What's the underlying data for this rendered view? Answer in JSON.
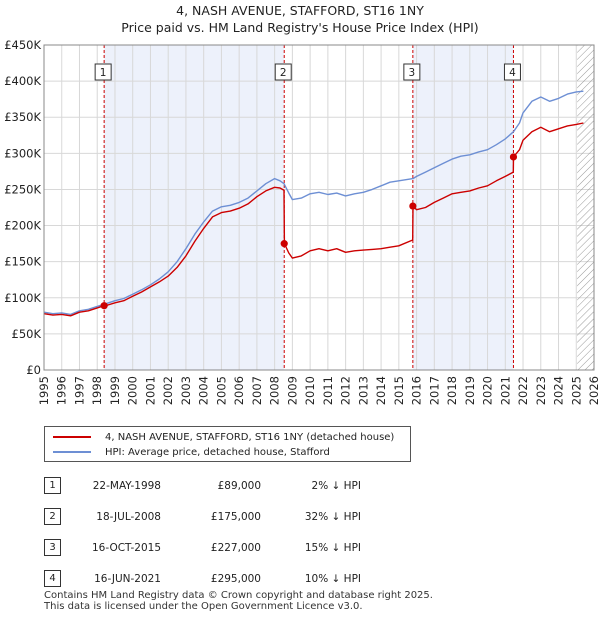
{
  "title_line1": "4, NASH AVENUE, STAFFORD, ST16 1NY",
  "title_line2": "Price paid vs. HM Land Registry's House Price Index (HPI)",
  "chart_data": {
    "type": "line",
    "x_range": [
      1995,
      2026
    ],
    "ylim": [
      0,
      450000
    ],
    "y_ticks": [
      0,
      50000,
      100000,
      150000,
      200000,
      250000,
      300000,
      350000,
      400000,
      450000
    ],
    "y_tick_labels": [
      "£0",
      "£50K",
      "£100K",
      "£150K",
      "£200K",
      "£250K",
      "£300K",
      "£350K",
      "£400K",
      "£450K"
    ],
    "x_ticks": [
      1995,
      1996,
      1997,
      1998,
      1999,
      2000,
      2001,
      2002,
      2003,
      2004,
      2005,
      2006,
      2007,
      2008,
      2009,
      2010,
      2011,
      2012,
      2013,
      2014,
      2015,
      2016,
      2017,
      2018,
      2019,
      2020,
      2021,
      2022,
      2023,
      2024,
      2025,
      2026
    ],
    "grid": true,
    "future_hatch_from": 2025.05,
    "series": [
      {
        "name": "4, NASH AVENUE, STAFFORD, ST16 1NY (detached house)",
        "color": "#cc0000",
        "points": [
          [
            1995.0,
            78000
          ],
          [
            1995.5,
            76000
          ],
          [
            1996.0,
            77000
          ],
          [
            1996.5,
            75000
          ],
          [
            1997.0,
            80000
          ],
          [
            1997.5,
            82000
          ],
          [
            1998.0,
            86000
          ],
          [
            1998.39,
            89000
          ],
          [
            1998.6,
            90000
          ],
          [
            1999.0,
            93000
          ],
          [
            1999.5,
            96000
          ],
          [
            2000.0,
            102000
          ],
          [
            2000.5,
            108000
          ],
          [
            2001.0,
            115000
          ],
          [
            2001.5,
            122000
          ],
          [
            2002.0,
            130000
          ],
          [
            2002.5,
            142000
          ],
          [
            2003.0,
            158000
          ],
          [
            2003.5,
            178000
          ],
          [
            2004.0,
            196000
          ],
          [
            2004.5,
            212000
          ],
          [
            2005.0,
            218000
          ],
          [
            2005.5,
            220000
          ],
          [
            2006.0,
            224000
          ],
          [
            2006.5,
            230000
          ],
          [
            2007.0,
            240000
          ],
          [
            2007.5,
            248000
          ],
          [
            2008.0,
            253000
          ],
          [
            2008.3,
            252000
          ],
          [
            2008.53,
            249000
          ],
          [
            2008.55,
            175000
          ],
          [
            2008.8,
            162000
          ],
          [
            2009.0,
            155000
          ],
          [
            2009.5,
            158000
          ],
          [
            2010.0,
            165000
          ],
          [
            2010.5,
            168000
          ],
          [
            2011.0,
            165000
          ],
          [
            2011.5,
            168000
          ],
          [
            2012.0,
            163000
          ],
          [
            2012.5,
            165000
          ],
          [
            2013.0,
            166000
          ],
          [
            2013.5,
            167000
          ],
          [
            2014.0,
            168000
          ],
          [
            2014.5,
            170000
          ],
          [
            2015.0,
            172000
          ],
          [
            2015.78,
            180000
          ],
          [
            2015.8,
            227000
          ],
          [
            2016.0,
            222000
          ],
          [
            2016.5,
            225000
          ],
          [
            2017.0,
            232000
          ],
          [
            2017.5,
            238000
          ],
          [
            2018.0,
            244000
          ],
          [
            2018.5,
            246000
          ],
          [
            2019.0,
            248000
          ],
          [
            2019.5,
            252000
          ],
          [
            2020.0,
            255000
          ],
          [
            2020.5,
            262000
          ],
          [
            2021.0,
            268000
          ],
          [
            2021.45,
            274000
          ],
          [
            2021.46,
            295000
          ],
          [
            2021.8,
            305000
          ],
          [
            2022.0,
            318000
          ],
          [
            2022.5,
            330000
          ],
          [
            2023.0,
            336000
          ],
          [
            2023.5,
            330000
          ],
          [
            2024.0,
            334000
          ],
          [
            2024.5,
            338000
          ],
          [
            2025.0,
            340000
          ],
          [
            2025.4,
            342000
          ]
        ]
      },
      {
        "name": "HPI: Average price, detached house, Stafford",
        "color": "#6d8fd4",
        "points": [
          [
            1995.0,
            80000
          ],
          [
            1995.5,
            78000
          ],
          [
            1996.0,
            79000
          ],
          [
            1996.5,
            77000
          ],
          [
            1997.0,
            82000
          ],
          [
            1997.5,
            84000
          ],
          [
            1998.0,
            88000
          ],
          [
            1998.39,
            91000
          ],
          [
            1999.0,
            96000
          ],
          [
            1999.5,
            99000
          ],
          [
            2000.0,
            105000
          ],
          [
            2000.5,
            111000
          ],
          [
            2001.0,
            118000
          ],
          [
            2001.5,
            126000
          ],
          [
            2002.0,
            136000
          ],
          [
            2002.5,
            150000
          ],
          [
            2003.0,
            168000
          ],
          [
            2003.5,
            188000
          ],
          [
            2004.0,
            205000
          ],
          [
            2004.5,
            220000
          ],
          [
            2005.0,
            226000
          ],
          [
            2005.5,
            228000
          ],
          [
            2006.0,
            232000
          ],
          [
            2006.5,
            238000
          ],
          [
            2007.0,
            248000
          ],
          [
            2007.5,
            258000
          ],
          [
            2008.0,
            265000
          ],
          [
            2008.3,
            262000
          ],
          [
            2008.53,
            258000
          ],
          [
            2008.8,
            245000
          ],
          [
            2009.0,
            236000
          ],
          [
            2009.5,
            238000
          ],
          [
            2010.0,
            244000
          ],
          [
            2010.5,
            246000
          ],
          [
            2011.0,
            243000
          ],
          [
            2011.5,
            245000
          ],
          [
            2012.0,
            241000
          ],
          [
            2012.5,
            244000
          ],
          [
            2013.0,
            246000
          ],
          [
            2013.5,
            250000
          ],
          [
            2014.0,
            255000
          ],
          [
            2014.5,
            260000
          ],
          [
            2015.0,
            262000
          ],
          [
            2015.8,
            265000
          ],
          [
            2016.0,
            268000
          ],
          [
            2016.5,
            274000
          ],
          [
            2017.0,
            280000
          ],
          [
            2017.5,
            286000
          ],
          [
            2018.0,
            292000
          ],
          [
            2018.5,
            296000
          ],
          [
            2019.0,
            298000
          ],
          [
            2019.5,
            302000
          ],
          [
            2020.0,
            305000
          ],
          [
            2020.5,
            312000
          ],
          [
            2021.0,
            320000
          ],
          [
            2021.46,
            330000
          ],
          [
            2021.8,
            342000
          ],
          [
            2022.0,
            356000
          ],
          [
            2022.5,
            372000
          ],
          [
            2023.0,
            378000
          ],
          [
            2023.5,
            372000
          ],
          [
            2024.0,
            376000
          ],
          [
            2024.5,
            382000
          ],
          [
            2025.0,
            385000
          ],
          [
            2025.4,
            386000
          ]
        ]
      }
    ],
    "transactions": [
      {
        "label": "1",
        "x": 1998.39,
        "price": 89000
      },
      {
        "label": "2",
        "x": 2008.54,
        "price": 175000
      },
      {
        "label": "3",
        "x": 2015.79,
        "price": 227000
      },
      {
        "label": "4",
        "x": 2021.46,
        "price": 295000
      }
    ],
    "shaded_periods": [
      [
        1998.39,
        2008.54
      ],
      [
        2015.79,
        2021.46
      ]
    ]
  },
  "legend": [
    {
      "label": "4, NASH AVENUE, STAFFORD, ST16 1NY (detached house)",
      "color": "#cc0000"
    },
    {
      "label": "HPI: Average price, detached house, Stafford",
      "color": "#6d8fd4"
    }
  ],
  "events": [
    {
      "num": "1",
      "date": "22-MAY-1998",
      "price": "£89,000",
      "hpi": "2% ↓ HPI"
    },
    {
      "num": "2",
      "date": "18-JUL-2008",
      "price": "£175,000",
      "hpi": "32% ↓ HPI"
    },
    {
      "num": "3",
      "date": "16-OCT-2015",
      "price": "£227,000",
      "hpi": "15% ↓ HPI"
    },
    {
      "num": "4",
      "date": "16-JUN-2021",
      "price": "£295,000",
      "hpi": "10% ↓ HPI"
    }
  ],
  "footer_line1": "Contains HM Land Registry data © Crown copyright and database right 2025.",
  "footer_line2": "This data is licensed under the Open Government Licence v3.0."
}
